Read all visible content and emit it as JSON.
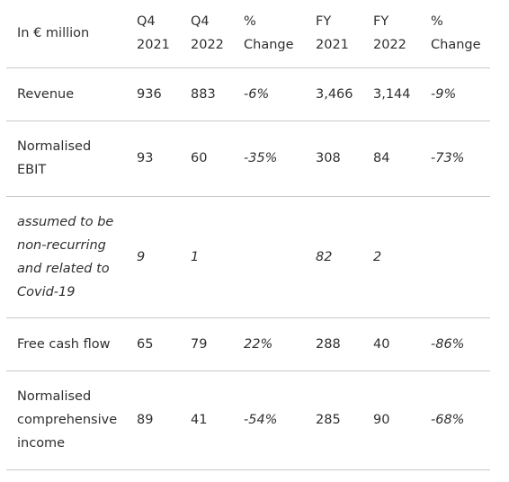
{
  "table": {
    "headers": [
      {
        "line1": "In € million",
        "line2": ""
      },
      {
        "line1": "Q4",
        "line2": "2021"
      },
      {
        "line1": "Q4",
        "line2": "2022"
      },
      {
        "line1": "%",
        "line2": "Change"
      },
      {
        "line1": "FY",
        "line2": "2021"
      },
      {
        "line1": "FY",
        "line2": "2022"
      },
      {
        "line1": "%",
        "line2": "Change"
      }
    ],
    "rows": [
      {
        "label": [
          "Revenue"
        ],
        "values": [
          "936",
          "883",
          "-6%",
          "3,466",
          "3,144",
          "-9%"
        ]
      },
      {
        "label": [
          "Normalised",
          "EBIT"
        ],
        "values": [
          "93",
          "60",
          "-35%",
          "308",
          "84",
          "-73%"
        ]
      },
      {
        "label": [
          "assumed to be",
          "non-recurring",
          "and related to",
          "Covid-19"
        ],
        "values": [
          "9",
          "1",
          "",
          "82",
          "2",
          ""
        ]
      },
      {
        "label": [
          "Free cash flow"
        ],
        "values": [
          "65",
          "79",
          "22%",
          "288",
          "40",
          "-86%"
        ]
      },
      {
        "label": [
          "Normalised",
          "comprehensive",
          "income"
        ],
        "values": [
          "89",
          "41",
          "-54%",
          "285",
          "90",
          "-68%"
        ]
      }
    ]
  }
}
